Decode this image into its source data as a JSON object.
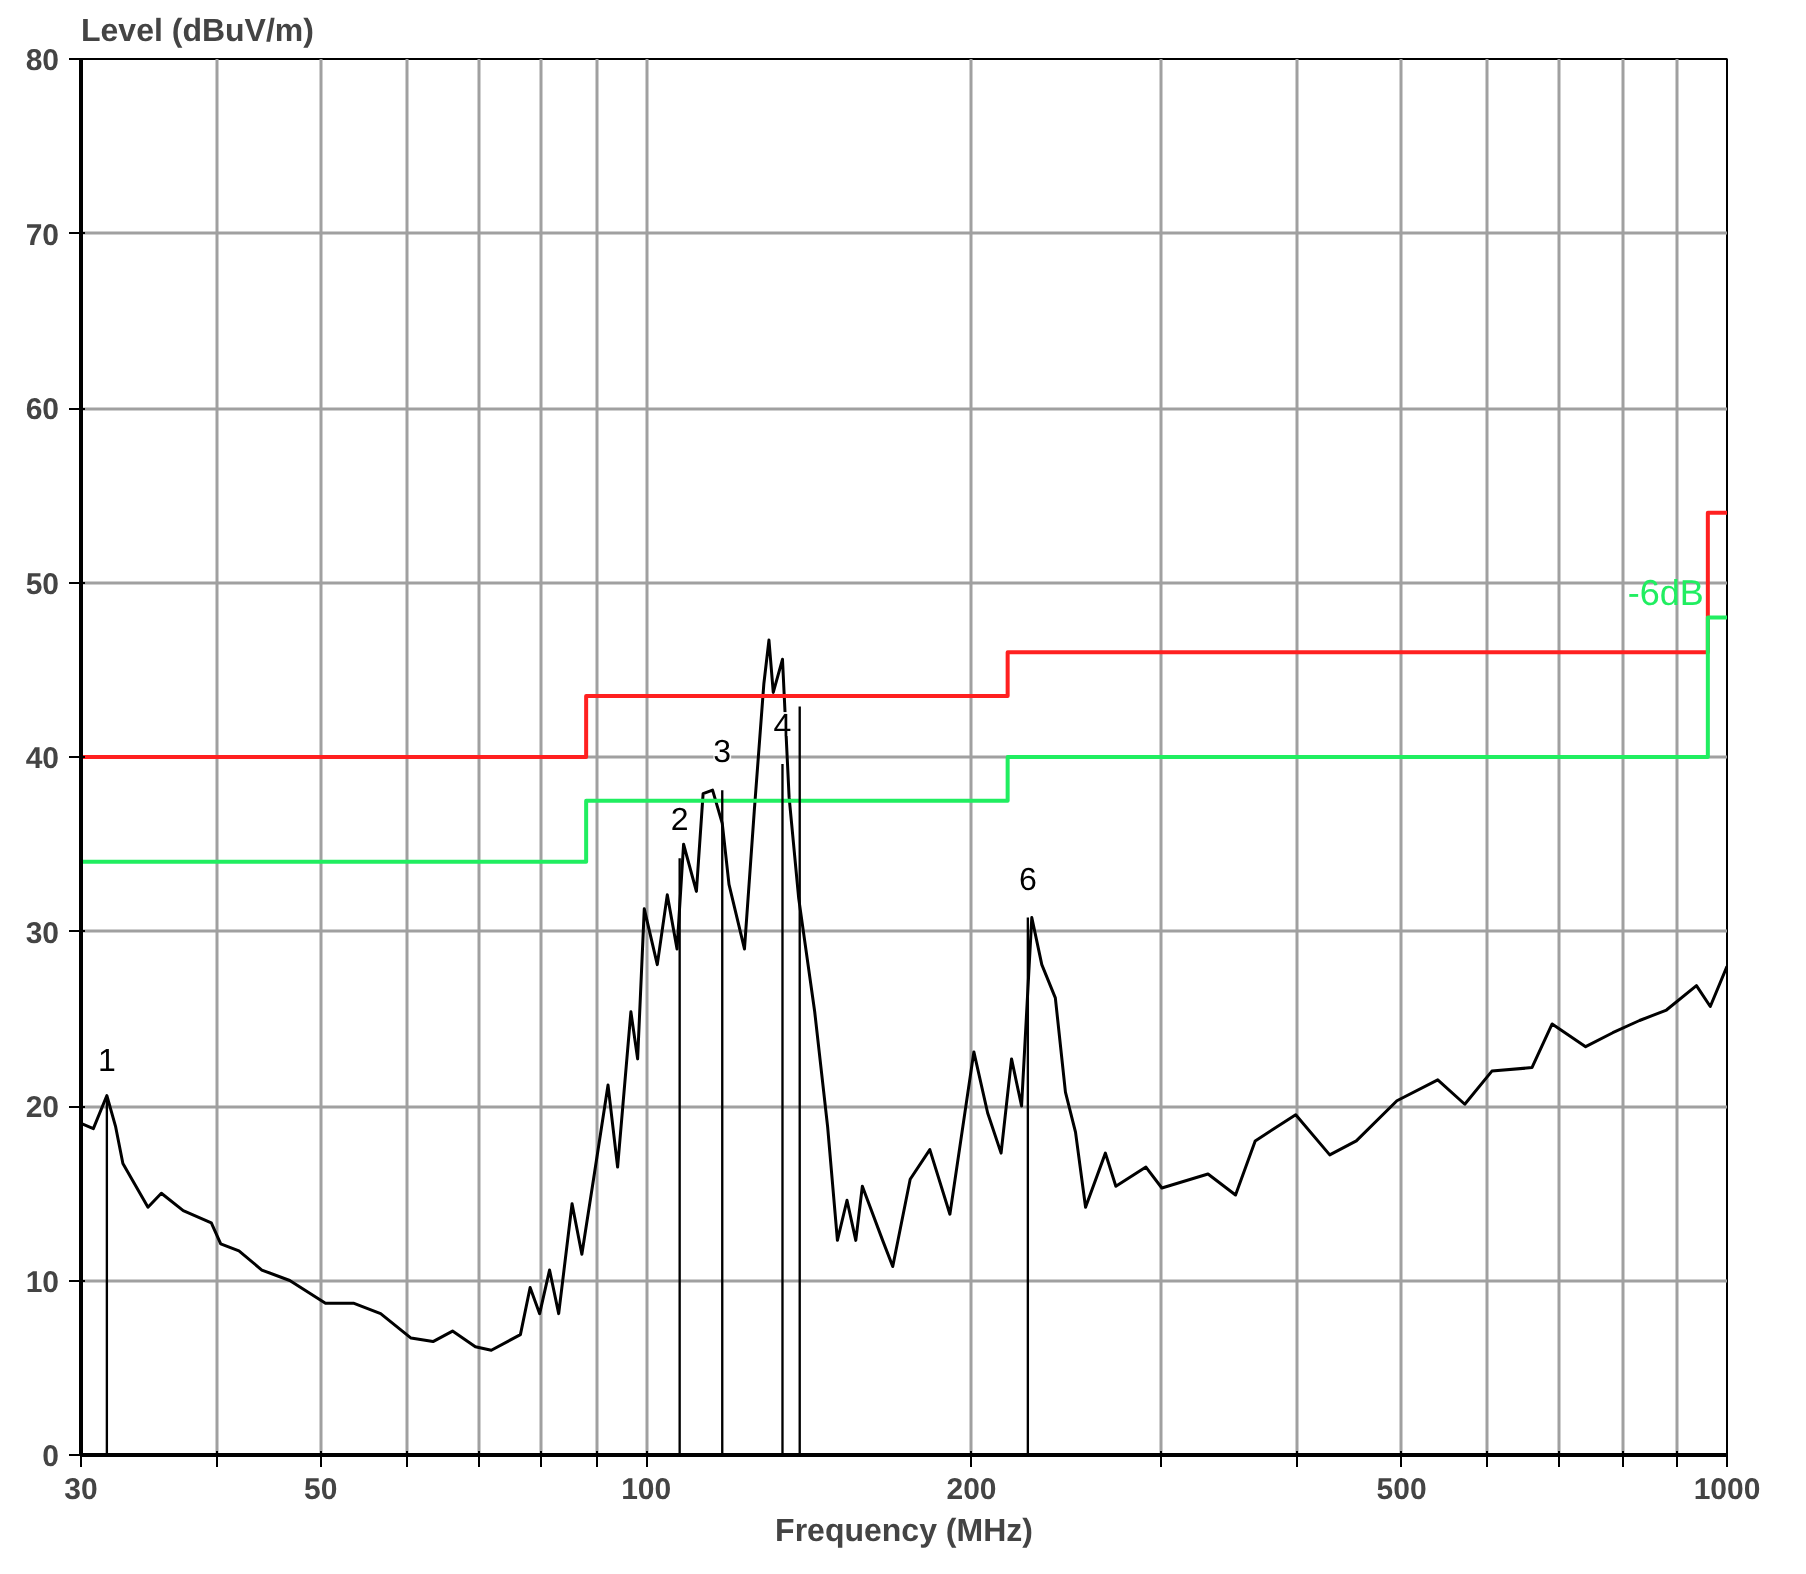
{
  "chart_data": {
    "type": "line",
    "xlabel": "Frequency (MHz)",
    "ylabel": "Level (dBuV/m)",
    "log": "x",
    "grid": true,
    "marker": "none",
    "xlim": [
      30,
      1000
    ],
    "ylim": [
      0,
      80
    ],
    "xticks": [
      30,
      {
        "value": 40,
        "label": null
      },
      50,
      {
        "value": 60,
        "label": null
      },
      {
        "value": 70,
        "label": null
      },
      {
        "value": 80,
        "label": null
      },
      {
        "value": 90,
        "label": null
      },
      100,
      200,
      {
        "value": 300,
        "label": null
      },
      {
        "value": 400,
        "label": null
      },
      500,
      {
        "value": 600,
        "label": null
      },
      {
        "value": 700,
        "label": null
      },
      {
        "value": 800,
        "label": null
      },
      {
        "value": 900,
        "label": null
      },
      1000
    ],
    "yticks": [
      0,
      10,
      20,
      30,
      40,
      50,
      60,
      70,
      80
    ],
    "series": [
      {
        "color": "#000000",
        "x": [
          30,
          30.8,
          31.7,
          32.3,
          32.8,
          34.6,
          35.6,
          37.3,
          39.6,
          40.4,
          42.0,
          44.1,
          46.8,
          50.5,
          53.6,
          56.8,
          60.6,
          63.5,
          66.2,
          69.5,
          71.9,
          76.5,
          78.1,
          79.7,
          81.4,
          83.0,
          85.4,
          87.2,
          89.6,
          92.2,
          94.1,
          96.8,
          98.2,
          99.6,
          102.4,
          104.6,
          106.8,
          108.3,
          111.3,
          112.9,
          115.2,
          117.6,
          119.3,
          123.3,
          125.9,
          128.5,
          129.9,
          131.1,
          133.7,
          135.6,
          138.4,
          143.2,
          147.2,
          150.3,
          153.4,
          156.3,
          158.5,
          165.5,
          169.1,
          175.5,
          183.0,
          191.0,
          201.0,
          207.0,
          213.0,
          217.8,
          222.5,
          227.4,
          232.3,
          239.1,
          244.3,
          249.6,
          255.0,
          266.0,
          272.0,
          290.0,
          300,
          331,
          351,
          366,
          399,
          429,
          454,
          495,
          540,
          572,
          606,
          660,
          689,
          740,
          784,
          830,
          879,
          937,
          965,
          1000
        ],
        "values": [
          19.0,
          18.7,
          20.6,
          18.8,
          16.7,
          14.2,
          15.0,
          14.0,
          13.3,
          12.1,
          11.7,
          10.6,
          10.0,
          8.7,
          8.7,
          8.1,
          6.7,
          6.5,
          7.1,
          6.2,
          6.0,
          6.9,
          9.6,
          8.1,
          10.6,
          8.1,
          14.4,
          11.5,
          16.2,
          21.2,
          16.5,
          25.4,
          22.7,
          31.3,
          28.1,
          32.1,
          29.0,
          35.0,
          32.3,
          37.9,
          38.1,
          36.2,
          32.7,
          29.0,
          36.9,
          44.2,
          46.7,
          43.7,
          45.6,
          37.7,
          31.9,
          25.4,
          18.8,
          12.3,
          14.6,
          12.3,
          15.4,
          12.3,
          10.8,
          15.8,
          17.5,
          13.8,
          23.1,
          19.6,
          17.3,
          22.7,
          20.0,
          30.8,
          28.1,
          26.2,
          20.8,
          18.5,
          14.2,
          17.3,
          15.4,
          16.5,
          15.3,
          16.1,
          14.9,
          18.0,
          19.5,
          17.2,
          18.0,
          20.3,
          21.5,
          20.1,
          22.0,
          22.2,
          24.7,
          23.4,
          24.2,
          24.9,
          25.5,
          26.9,
          25.7,
          28.0
        ]
      },
      {
        "color": "#ff2020",
        "x": [
          30,
          88,
          88,
          216,
          216,
          960,
          960,
          1000
        ],
        "values": [
          40,
          40,
          43.5,
          43.5,
          46,
          46,
          54,
          54
        ]
      },
      {
        "color": "#20ee60",
        "x": [
          30,
          88,
          88,
          216,
          216,
          960,
          960,
          1000
        ],
        "values": [
          34,
          34,
          37.5,
          37.5,
          40,
          40,
          48,
          48
        ]
      },
      {
        "type": "bar",
        "color": "#000000",
        "x": [
          31.7,
          107.4,
          117.6,
          133.7,
          138.7,
          225.5
        ],
        "values": [
          20.4,
          34.2,
          38.1,
          39.6,
          42.9,
          30.8
        ]
      }
    ],
    "annotations": [
      {
        "text": "1",
        "x": 31.7,
        "y": 20.4
      },
      {
        "text": "2",
        "x": 107.4,
        "y": 34.2
      },
      {
        "text": "3",
        "x": 117.6,
        "y": 38.1
      },
      {
        "text": "4",
        "x": 133.7,
        "y": 39.6
      },
      {
        "text": "6",
        "x": 225.5,
        "y": 30.8
      },
      "-6dB"
    ]
  }
}
